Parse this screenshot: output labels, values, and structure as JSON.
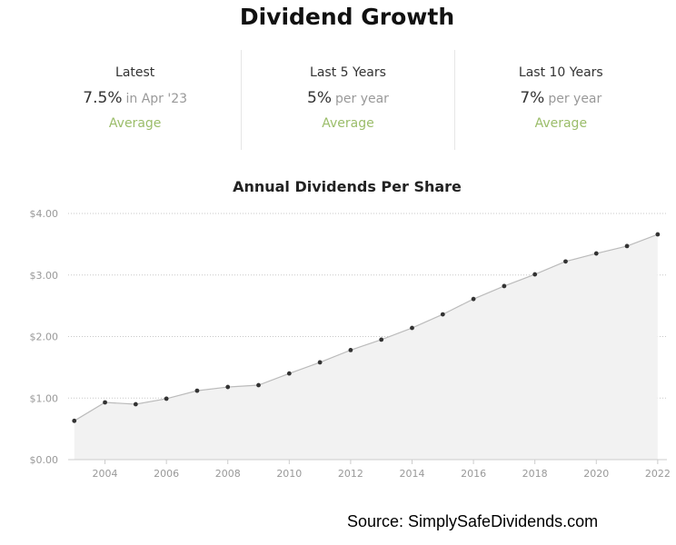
{
  "header": {
    "title": "Dividend Growth"
  },
  "stats": [
    {
      "label": "Latest",
      "value": "7.5%",
      "suffix": "in Apr '23",
      "tag": "Average"
    },
    {
      "label": "Last 5 Years",
      "value": "5%",
      "suffix": "per year",
      "tag": "Average"
    },
    {
      "label": "Last 10 Years",
      "value": "7%",
      "suffix": "per year",
      "tag": "Average"
    }
  ],
  "chart_data": {
    "type": "area",
    "title": "Annual Dividends Per Share",
    "x": [
      2003,
      2004,
      2005,
      2006,
      2007,
      2008,
      2009,
      2010,
      2011,
      2012,
      2013,
      2014,
      2015,
      2016,
      2017,
      2018,
      2019,
      2020,
      2021,
      2022
    ],
    "values": [
      0.63,
      0.93,
      0.9,
      0.99,
      1.12,
      1.18,
      1.21,
      1.4,
      1.58,
      1.78,
      1.95,
      2.14,
      2.36,
      2.61,
      2.82,
      3.01,
      3.22,
      3.35,
      3.47,
      3.66
    ],
    "x_ticks": [
      "2004",
      "2006",
      "2008",
      "2010",
      "2012",
      "2014",
      "2016",
      "2018",
      "2020",
      "2022"
    ],
    "y_ticks": [
      "$0.00",
      "$1.00",
      "$2.00",
      "$3.00",
      "$4.00"
    ],
    "ylim": [
      0,
      4
    ],
    "xlim": [
      2002.8,
      2022.3
    ],
    "grid": true,
    "colors": {
      "line": "#bbbbbb",
      "area": "#f2f2f2",
      "point": "#333333",
      "grid": "#c8c8c8"
    }
  },
  "footer": {
    "source": "Source: SimplySafeDividends.com"
  }
}
